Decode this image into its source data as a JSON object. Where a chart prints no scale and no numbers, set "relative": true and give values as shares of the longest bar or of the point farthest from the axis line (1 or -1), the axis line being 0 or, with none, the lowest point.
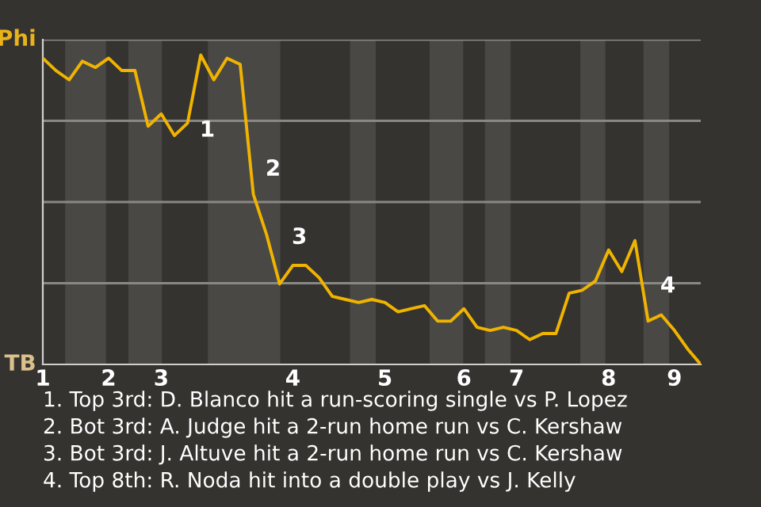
{
  "chart_data": {
    "type": "line",
    "categories": [
      "1",
      null,
      null,
      null,
      null,
      "2",
      null,
      null,
      null,
      "3",
      null,
      null,
      null,
      null,
      null,
      null,
      null,
      null,
      null,
      "4",
      null,
      null,
      null,
      null,
      null,
      null,
      "5",
      null,
      null,
      null,
      null,
      null,
      "6",
      null,
      null,
      null,
      "7",
      null,
      null,
      null,
      null,
      null,
      null,
      "8",
      null,
      null,
      null,
      null,
      "9",
      null,
      null
    ],
    "series": [
      {
        "color": "#f0b400",
        "values": [
          0.99,
          0.95,
          0.92,
          0.98,
          0.96,
          0.99,
          0.95,
          0.95,
          0.77,
          0.81,
          0.74,
          0.78,
          1,
          0.92,
          0.99,
          0.97,
          0.55,
          0.42,
          0.26,
          0.32,
          0.32,
          0.28,
          0.22,
          0.21,
          0.2,
          0.21,
          0.2,
          0.17,
          0.18,
          0.19,
          0.14,
          0.14,
          0.18,
          0.12,
          0.11,
          0.12,
          0.11,
          0.08,
          0.1,
          0.1,
          0.23,
          0.24,
          0.27,
          0.37,
          0.3,
          0.4,
          0.14,
          0.16,
          0.11,
          0.05,
          0
        ]
      }
    ],
    "relative": true,
    "grid": true,
    "annotations": [
      "Phi",
      "TB",
      "1",
      "2",
      "3",
      "4",
      "1. Top 3rd: D. Blanco hit a run-scoring single vs P. Lopez",
      "2. Bot 3rd: A. Judge hit a 2-run home run vs C. Kershaw",
      "3. Bot 3rd: J. Altuve hit a 2-run home run vs C. Kershaw",
      "4. Top 8th: R. Noda hit into a double play vs J. Kelly"
    ]
  }
}
